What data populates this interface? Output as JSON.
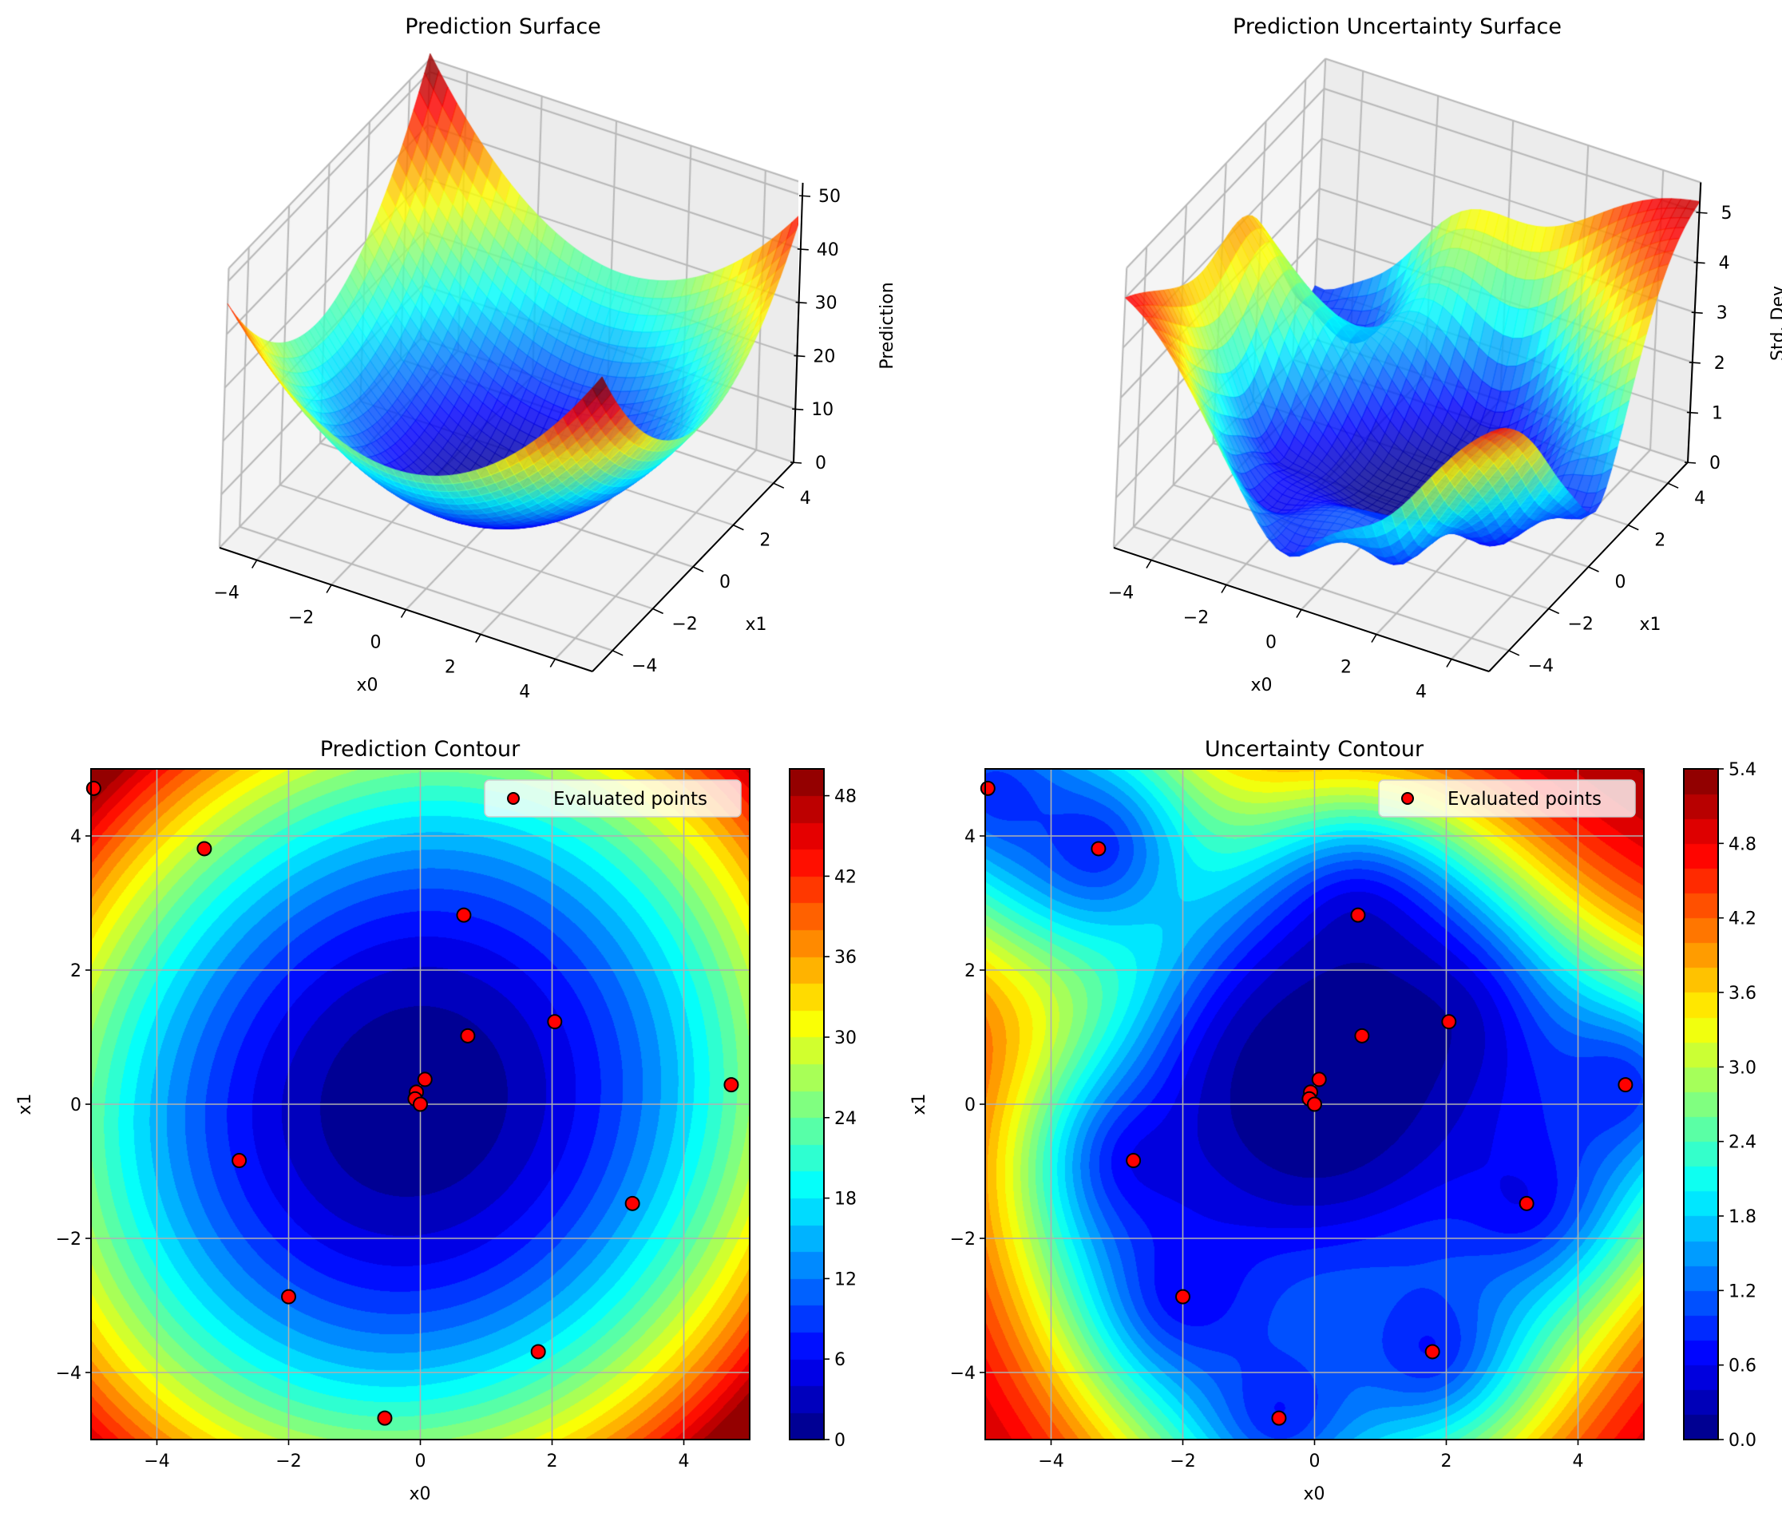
{
  "chart_data": [
    {
      "type": "surface3d",
      "title": "Prediction Surface",
      "xlabel": "x0",
      "ylabel": "x1",
      "zlabel": "Prediction",
      "xlim": [
        -5,
        5
      ],
      "ylim": [
        -5,
        5
      ],
      "zlim": [
        0,
        52
      ],
      "xticks": [
        "−4",
        "−2",
        "0",
        "2",
        "4"
      ],
      "xtick_values": [
        -4,
        -2,
        0,
        2,
        4
      ],
      "yticks": [
        "−4",
        "−2",
        "0",
        "2",
        "4"
      ],
      "ytick_values": [
        -4,
        -2,
        0,
        2,
        4
      ],
      "zticks": [
        "0",
        "10",
        "20",
        "30",
        "40",
        "50"
      ],
      "ztick_values": [
        0,
        10,
        20,
        30,
        40,
        50
      ],
      "colormap": "jet",
      "surface": "approximately x0^2 + x1^2 bowl, max ~50 at corner (-5,5)"
    },
    {
      "type": "surface3d",
      "title": "Prediction Uncertainty Surface",
      "xlabel": "x0",
      "ylabel": "x1",
      "zlabel": "Std. Dev",
      "xlim": [
        -5,
        5
      ],
      "ylim": [
        -5,
        5
      ],
      "zlim": [
        0,
        5.4
      ],
      "xticks": [
        "−4",
        "−2",
        "0",
        "2",
        "4"
      ],
      "xtick_values": [
        -4,
        -2,
        0,
        2,
        4
      ],
      "yticks": [
        "−4",
        "−2",
        "0",
        "2",
        "4"
      ],
      "ytick_values": [
        -4,
        -2,
        0,
        2,
        4
      ],
      "zticks": [
        "0",
        "1",
        "2",
        "3",
        "4",
        "5"
      ],
      "ztick_values": [
        0,
        1,
        2,
        3,
        4,
        5
      ],
      "colormap": "jet"
    },
    {
      "type": "contour",
      "title": "Prediction Contour",
      "xlabel": "x0",
      "ylabel": "x1",
      "xlim": [
        -5,
        5
      ],
      "ylim": [
        -5,
        5
      ],
      "grid": true,
      "levels": [
        0,
        50
      ],
      "level_step": 2,
      "colorbar_ticks": [
        "0",
        "6",
        "12",
        "18",
        "24",
        "30",
        "36",
        "42",
        "48"
      ],
      "colorbar_tick_values": [
        0,
        6,
        12,
        18,
        24,
        30,
        36,
        42,
        48
      ],
      "xticks": [
        "−4",
        "−2",
        "0",
        "2",
        "4"
      ],
      "xtick_values": [
        -4,
        -2,
        0,
        2,
        4
      ],
      "yticks": [
        "−4",
        "−2",
        "0",
        "2",
        "4"
      ],
      "ytick_values": [
        -4,
        -2,
        0,
        2,
        4
      ],
      "legend": {
        "label": "Evaluated points",
        "position": "upper right"
      },
      "colormap": "jet"
    },
    {
      "type": "contour",
      "title": "Uncertainty Contour",
      "xlabel": "x0",
      "ylabel": "x1",
      "xlim": [
        -5,
        5
      ],
      "ylim": [
        -5,
        5
      ],
      "grid": true,
      "levels": [
        0,
        5.4
      ],
      "level_step": 0.2,
      "colorbar_ticks": [
        "0.0",
        "0.6",
        "1.2",
        "1.8",
        "2.4",
        "3.0",
        "3.6",
        "4.2",
        "4.8",
        "5.4"
      ],
      "colorbar_tick_values": [
        0,
        0.6,
        1.2,
        1.8,
        2.4,
        3.0,
        3.6,
        4.2,
        4.8,
        5.4
      ],
      "xticks": [
        "−4",
        "−2",
        "0",
        "2",
        "4"
      ],
      "xtick_values": [
        -4,
        -2,
        0,
        2,
        4
      ],
      "yticks": [
        "−4",
        "−2",
        "0",
        "2",
        "4"
      ],
      "ytick_values": [
        -4,
        -2,
        0,
        2,
        4
      ],
      "legend": {
        "label": "Evaluated points",
        "position": "upper right"
      },
      "colormap": "jet"
    }
  ],
  "evaluated_points": [
    {
      "x0": -4.96,
      "x1": 4.71
    },
    {
      "x0": -3.28,
      "x1": 3.81
    },
    {
      "x0": 0.66,
      "x1": 2.82
    },
    {
      "x0": 2.04,
      "x1": 1.23
    },
    {
      "x0": 0.72,
      "x1": 1.02
    },
    {
      "x0": 0.07,
      "x1": 0.37
    },
    {
      "x0": -0.06,
      "x1": 0.18
    },
    {
      "x0": -0.08,
      "x1": 0.08
    },
    {
      "x0": 0.0,
      "x1": 0.0
    },
    {
      "x0": 4.72,
      "x1": 0.29
    },
    {
      "x0": -2.75,
      "x1": -0.84
    },
    {
      "x0": 3.22,
      "x1": -1.48
    },
    {
      "x0": -2.0,
      "x1": -2.87
    },
    {
      "x0": 1.79,
      "x1": -3.69
    },
    {
      "x0": -0.54,
      "x1": -4.68
    }
  ],
  "colors": {
    "point_fill": "#ff0000",
    "point_edge": "#000000",
    "grid": "#b0b0b0",
    "pane": "#f2f2f2"
  }
}
